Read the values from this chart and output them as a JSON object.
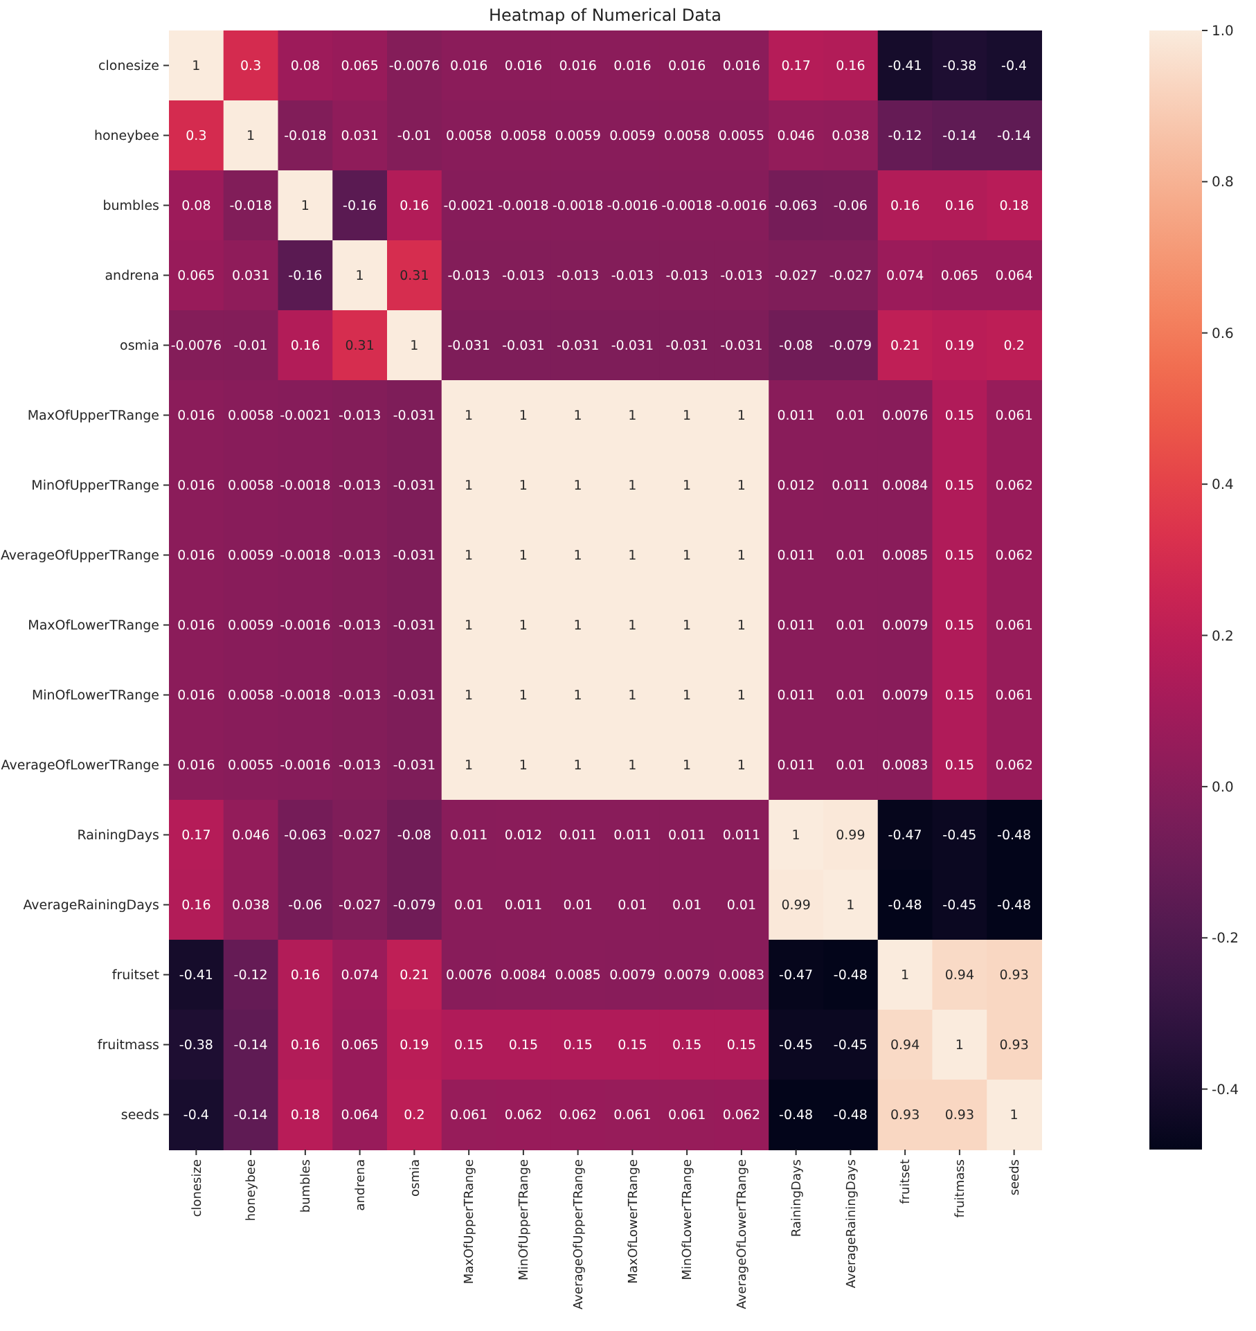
{
  "chart_data": {
    "type": "heatmap",
    "title": "Heatmap of Numerical Data",
    "categories": [
      "clonesize",
      "honeybee",
      "bumbles",
      "andrena",
      "osmia",
      "MaxOfUpperTRange",
      "MinOfUpperTRange",
      "AverageOfUpperTRange",
      "MaxOfLowerTRange",
      "MinOfLowerTRange",
      "AverageOfLowerTRange",
      "RainingDays",
      "AverageRainingDays",
      "fruitset",
      "fruitmass",
      "seeds"
    ],
    "y_categories": [
      "clonesize",
      "honeybee",
      "bumbles",
      "andrena",
      "osmia",
      "MaxOfUpperTRange",
      "MinOfUpperTRange",
      "AverageOfUpperTRange",
      "MaxOfLowerTRange",
      "MinOfLowerTRange",
      "AverageOfLowerTRange",
      "RainingDays",
      "AverageRainingDays",
      "fruitset",
      "fruitmass",
      "seeds"
    ],
    "cells": [
      [
        1,
        0.3,
        0.08,
        0.065,
        -0.0076,
        0.016,
        0.016,
        0.016,
        0.016,
        0.016,
        0.016,
        0.17,
        0.16,
        -0.41,
        -0.38,
        -0.4
      ],
      [
        0.3,
        1,
        -0.018,
        0.031,
        -0.01,
        0.0058,
        0.0058,
        0.0059,
        0.0059,
        0.0058,
        0.0055,
        0.046,
        0.038,
        -0.12,
        -0.14,
        -0.14
      ],
      [
        0.08,
        -0.018,
        1,
        -0.16,
        0.16,
        -0.0021,
        -0.0018,
        -0.0018,
        -0.0016,
        -0.0018,
        -0.0016,
        -0.063,
        -0.06,
        0.16,
        0.16,
        0.18
      ],
      [
        0.065,
        0.031,
        -0.16,
        1,
        0.31,
        -0.013,
        -0.013,
        -0.013,
        -0.013,
        -0.013,
        -0.013,
        -0.027,
        -0.027,
        0.074,
        0.065,
        0.064
      ],
      [
        -0.0076,
        -0.01,
        0.16,
        0.31,
        1,
        -0.031,
        -0.031,
        -0.031,
        -0.031,
        -0.031,
        -0.031,
        -0.08,
        -0.079,
        0.21,
        0.19,
        0.2
      ],
      [
        0.016,
        0.0058,
        -0.0021,
        -0.013,
        -0.031,
        1,
        1,
        1,
        1,
        1,
        1,
        0.011,
        0.01,
        0.0076,
        0.15,
        0.061
      ],
      [
        0.016,
        0.0058,
        -0.0018,
        -0.013,
        -0.031,
        1,
        1,
        1,
        1,
        1,
        1,
        0.012,
        0.011,
        0.0084,
        0.15,
        0.062
      ],
      [
        0.016,
        0.0059,
        -0.0018,
        -0.013,
        -0.031,
        1,
        1,
        1,
        1,
        1,
        1,
        0.011,
        0.01,
        0.0085,
        0.15,
        0.062
      ],
      [
        0.016,
        0.0059,
        -0.0016,
        -0.013,
        -0.031,
        1,
        1,
        1,
        1,
        1,
        1,
        0.011,
        0.01,
        0.0079,
        0.15,
        0.061
      ],
      [
        0.016,
        0.0058,
        -0.0018,
        -0.013,
        -0.031,
        1,
        1,
        1,
        1,
        1,
        1,
        0.011,
        0.01,
        0.0079,
        0.15,
        0.061
      ],
      [
        0.016,
        0.0055,
        -0.0016,
        -0.013,
        -0.031,
        1,
        1,
        1,
        1,
        1,
        1,
        0.011,
        0.01,
        0.0083,
        0.15,
        0.062
      ],
      [
        0.17,
        0.046,
        -0.063,
        -0.027,
        -0.08,
        0.011,
        0.012,
        0.011,
        0.011,
        0.011,
        0.011,
        1,
        0.99,
        -0.47,
        -0.45,
        -0.48
      ],
      [
        0.16,
        0.038,
        -0.06,
        -0.027,
        -0.079,
        0.01,
        0.011,
        0.01,
        0.01,
        0.01,
        0.01,
        0.99,
        1,
        -0.48,
        -0.45,
        -0.48
      ],
      [
        -0.41,
        -0.12,
        0.16,
        0.074,
        0.21,
        0.0076,
        0.0084,
        0.0085,
        0.0079,
        0.0079,
        0.0083,
        -0.47,
        -0.48,
        1,
        0.94,
        0.93
      ],
      [
        -0.38,
        -0.14,
        0.16,
        0.065,
        0.19,
        0.15,
        0.15,
        0.15,
        0.15,
        0.15,
        0.15,
        -0.45,
        -0.45,
        0.94,
        1,
        0.93
      ],
      [
        -0.4,
        -0.14,
        0.18,
        0.064,
        0.2,
        0.061,
        0.062,
        0.062,
        0.061,
        0.061,
        0.062,
        -0.48,
        -0.48,
        0.93,
        0.93,
        1
      ]
    ],
    "clim": [
      -0.48,
      1
    ],
    "cticks": [
      {
        "value": -0.4,
        "label": "-0.4"
      },
      {
        "value": -0.2,
        "label": "-0.2"
      },
      {
        "value": 0,
        "label": "0.0"
      },
      {
        "value": 0.2,
        "label": "0.2"
      },
      {
        "value": 0.4,
        "label": "0.4"
      },
      {
        "value": 0.6,
        "label": "0.6"
      },
      {
        "value": 0.8,
        "label": "0.8"
      },
      {
        "value": 1,
        "label": "1.0"
      }
    ],
    "data_labels": true
  }
}
